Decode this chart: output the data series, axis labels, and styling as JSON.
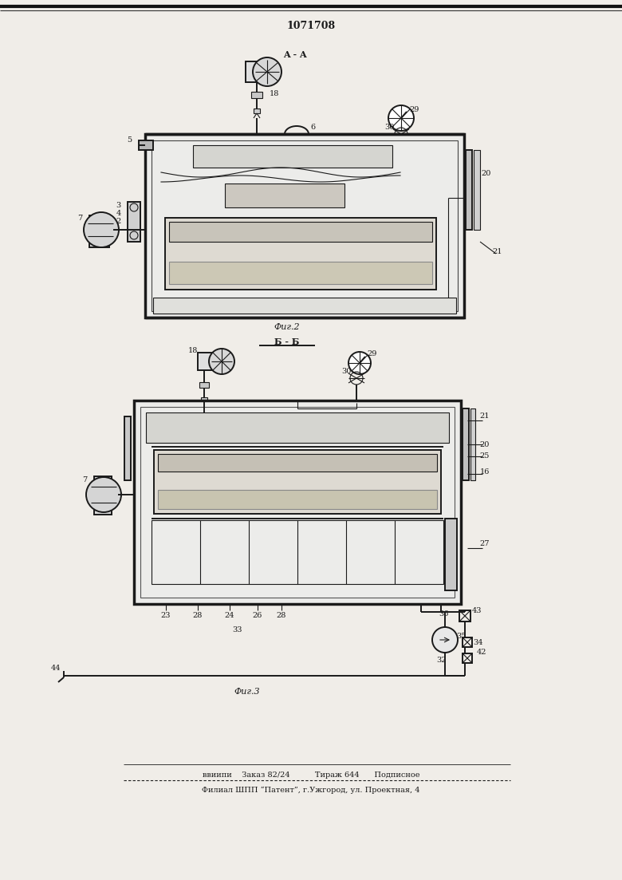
{
  "title": "1071708",
  "footer_line1": "ввиипи    Заказ 82/24          Тираж 644      Подписное",
  "footer_line2": "Филиал ШПП “Патент”, г.Ужгород, ул. Проектная, 4",
  "fig2_label": "Фиг.2",
  "fig3_label": "Фиг.3",
  "section_aa": "A - A",
  "section_bb": "Б - Б",
  "bg_color": "#f0ede8",
  "line_color": "#1a1a1a",
  "page_width": 7.8,
  "page_height": 11.03
}
